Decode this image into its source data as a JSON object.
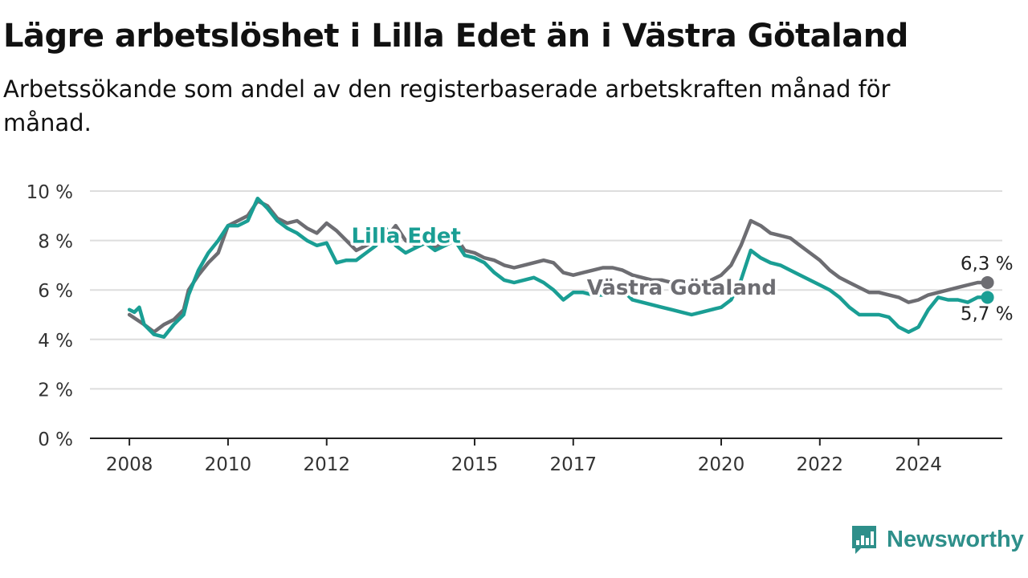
{
  "title": "Lägre arbetslöshet i Lilla Edet än i Västra Götaland",
  "subtitle": "Arbetssökande som andel av den registerbaserade arbetskraften månad för månad.",
  "brand": {
    "name": "Newsworthy",
    "color": "#2e8f8a",
    "icon": "newsworthy-chart-bubble-icon"
  },
  "chart_data": {
    "type": "line",
    "title": "Lägre arbetslöshet i Lilla Edet än i Västra Götaland",
    "subtitle": "Arbetssökande som andel av den registerbaserade arbetskraften månad för månad.",
    "x_ticks": [
      {
        "value": 2008.0,
        "label": "2008"
      },
      {
        "value": 2010.0,
        "label": "2010"
      },
      {
        "value": 2012.0,
        "label": "2012"
      },
      {
        "value": 2015.0,
        "label": "2015"
      },
      {
        "value": 2017.0,
        "label": "2017"
      },
      {
        "value": 2020.0,
        "label": "2020"
      },
      {
        "value": 2022.0,
        "label": "2022"
      },
      {
        "value": 2024.0,
        "label": "2024"
      }
    ],
    "y_ticks": [
      {
        "value": 0,
        "label": "0 %"
      },
      {
        "value": 2,
        "label": "2 %"
      },
      {
        "value": 4,
        "label": "4 %"
      },
      {
        "value": 6,
        "label": "6 %"
      },
      {
        "value": 8,
        "label": "8 %"
      },
      {
        "value": 10,
        "label": "10 %"
      }
    ],
    "xlim": [
      2007.2,
      2025.7
    ],
    "ylim": [
      0,
      10
    ],
    "grid": true,
    "series": [
      {
        "name": "Västra Götaland",
        "color": "#6d6d72",
        "end_label": "6,3 %",
        "points": [
          [
            2008.0,
            5.0
          ],
          [
            2008.3,
            4.6
          ],
          [
            2008.5,
            4.3
          ],
          [
            2008.7,
            4.6
          ],
          [
            2008.9,
            4.8
          ],
          [
            2009.1,
            5.2
          ],
          [
            2009.2,
            6.0
          ],
          [
            2009.4,
            6.6
          ],
          [
            2009.6,
            7.1
          ],
          [
            2009.8,
            7.5
          ],
          [
            2010.0,
            8.6
          ],
          [
            2010.2,
            8.8
          ],
          [
            2010.4,
            9.0
          ],
          [
            2010.6,
            9.6
          ],
          [
            2010.8,
            9.4
          ],
          [
            2011.0,
            8.9
          ],
          [
            2011.2,
            8.7
          ],
          [
            2011.4,
            8.8
          ],
          [
            2011.6,
            8.5
          ],
          [
            2011.8,
            8.3
          ],
          [
            2012.0,
            8.7
          ],
          [
            2012.2,
            8.4
          ],
          [
            2012.4,
            8.0
          ],
          [
            2012.6,
            7.6
          ],
          [
            2012.8,
            7.8
          ],
          [
            2013.0,
            8.0
          ],
          [
            2013.2,
            8.1
          ],
          [
            2013.4,
            8.6
          ],
          [
            2013.6,
            8.0
          ],
          [
            2013.8,
            7.8
          ],
          [
            2014.0,
            7.9
          ],
          [
            2014.2,
            7.7
          ],
          [
            2014.4,
            8.0
          ],
          [
            2014.6,
            8.2
          ],
          [
            2014.8,
            7.6
          ],
          [
            2015.0,
            7.5
          ],
          [
            2015.2,
            7.3
          ],
          [
            2015.4,
            7.2
          ],
          [
            2015.6,
            7.0
          ],
          [
            2015.8,
            6.9
          ],
          [
            2016.0,
            7.0
          ],
          [
            2016.2,
            7.1
          ],
          [
            2016.4,
            7.2
          ],
          [
            2016.6,
            7.1
          ],
          [
            2016.8,
            6.7
          ],
          [
            2017.0,
            6.6
          ],
          [
            2017.2,
            6.7
          ],
          [
            2017.4,
            6.8
          ],
          [
            2017.6,
            6.9
          ],
          [
            2017.8,
            6.9
          ],
          [
            2018.0,
            6.8
          ],
          [
            2018.2,
            6.6
          ],
          [
            2018.4,
            6.5
          ],
          [
            2018.6,
            6.4
          ],
          [
            2018.8,
            6.4
          ],
          [
            2019.0,
            6.3
          ],
          [
            2019.2,
            6.3
          ],
          [
            2019.4,
            6.2
          ],
          [
            2019.6,
            6.3
          ],
          [
            2019.8,
            6.4
          ],
          [
            2020.0,
            6.6
          ],
          [
            2020.2,
            7.0
          ],
          [
            2020.4,
            7.8
          ],
          [
            2020.6,
            8.8
          ],
          [
            2020.8,
            8.6
          ],
          [
            2021.0,
            8.3
          ],
          [
            2021.2,
            8.2
          ],
          [
            2021.4,
            8.1
          ],
          [
            2021.6,
            7.8
          ],
          [
            2021.8,
            7.5
          ],
          [
            2022.0,
            7.2
          ],
          [
            2022.2,
            6.8
          ],
          [
            2022.4,
            6.5
          ],
          [
            2022.6,
            6.3
          ],
          [
            2022.8,
            6.1
          ],
          [
            2023.0,
            5.9
          ],
          [
            2023.2,
            5.9
          ],
          [
            2023.4,
            5.8
          ],
          [
            2023.6,
            5.7
          ],
          [
            2023.8,
            5.5
          ],
          [
            2024.0,
            5.6
          ],
          [
            2024.2,
            5.8
          ],
          [
            2024.4,
            5.9
          ],
          [
            2024.6,
            6.0
          ],
          [
            2024.8,
            6.1
          ],
          [
            2025.0,
            6.2
          ],
          [
            2025.2,
            6.3
          ],
          [
            2025.4,
            6.3
          ]
        ]
      },
      {
        "name": "Lilla Edet",
        "color": "#1a9e94",
        "end_label": "5,7 %",
        "points": [
          [
            2008.0,
            5.2
          ],
          [
            2008.1,
            5.1
          ],
          [
            2008.2,
            5.3
          ],
          [
            2008.3,
            4.6
          ],
          [
            2008.5,
            4.2
          ],
          [
            2008.7,
            4.1
          ],
          [
            2008.9,
            4.6
          ],
          [
            2009.1,
            5.0
          ],
          [
            2009.2,
            5.8
          ],
          [
            2009.4,
            6.8
          ],
          [
            2009.6,
            7.5
          ],
          [
            2009.8,
            8.0
          ],
          [
            2010.0,
            8.6
          ],
          [
            2010.2,
            8.6
          ],
          [
            2010.4,
            8.8
          ],
          [
            2010.6,
            9.7
          ],
          [
            2010.8,
            9.3
          ],
          [
            2011.0,
            8.8
          ],
          [
            2011.2,
            8.5
          ],
          [
            2011.4,
            8.3
          ],
          [
            2011.6,
            8.0
          ],
          [
            2011.8,
            7.8
          ],
          [
            2012.0,
            7.9
          ],
          [
            2012.2,
            7.1
          ],
          [
            2012.4,
            7.2
          ],
          [
            2012.6,
            7.2
          ],
          [
            2012.8,
            7.5
          ],
          [
            2013.0,
            7.8
          ],
          [
            2013.2,
            8.5
          ],
          [
            2013.4,
            7.8
          ],
          [
            2013.6,
            7.5
          ],
          [
            2013.8,
            7.7
          ],
          [
            2014.0,
            7.9
          ],
          [
            2014.2,
            7.6
          ],
          [
            2014.4,
            7.8
          ],
          [
            2014.6,
            8.0
          ],
          [
            2014.8,
            7.4
          ],
          [
            2015.0,
            7.3
          ],
          [
            2015.2,
            7.1
          ],
          [
            2015.4,
            6.7
          ],
          [
            2015.6,
            6.4
          ],
          [
            2015.8,
            6.3
          ],
          [
            2016.0,
            6.4
          ],
          [
            2016.2,
            6.5
          ],
          [
            2016.4,
            6.3
          ],
          [
            2016.6,
            6.0
          ],
          [
            2016.8,
            5.6
          ],
          [
            2017.0,
            5.9
          ],
          [
            2017.2,
            5.9
          ],
          [
            2017.4,
            5.8
          ],
          [
            2017.6,
            5.8
          ],
          [
            2017.8,
            6.1
          ],
          [
            2018.0,
            6.0
          ],
          [
            2018.2,
            5.6
          ],
          [
            2018.4,
            5.5
          ],
          [
            2018.6,
            5.4
          ],
          [
            2018.8,
            5.3
          ],
          [
            2019.0,
            5.2
          ],
          [
            2019.2,
            5.1
          ],
          [
            2019.4,
            5.0
          ],
          [
            2019.6,
            5.1
          ],
          [
            2019.8,
            5.2
          ],
          [
            2020.0,
            5.3
          ],
          [
            2020.2,
            5.6
          ],
          [
            2020.4,
            6.4
          ],
          [
            2020.6,
            7.6
          ],
          [
            2020.8,
            7.3
          ],
          [
            2021.0,
            7.1
          ],
          [
            2021.2,
            7.0
          ],
          [
            2021.4,
            6.8
          ],
          [
            2021.6,
            6.6
          ],
          [
            2021.8,
            6.4
          ],
          [
            2022.0,
            6.2
          ],
          [
            2022.2,
            6.0
          ],
          [
            2022.4,
            5.7
          ],
          [
            2022.6,
            5.3
          ],
          [
            2022.8,
            5.0
          ],
          [
            2023.0,
            5.0
          ],
          [
            2023.2,
            5.0
          ],
          [
            2023.4,
            4.9
          ],
          [
            2023.6,
            4.5
          ],
          [
            2023.8,
            4.3
          ],
          [
            2024.0,
            4.5
          ],
          [
            2024.2,
            5.2
          ],
          [
            2024.4,
            5.7
          ],
          [
            2024.6,
            5.6
          ],
          [
            2024.8,
            5.6
          ],
          [
            2025.0,
            5.5
          ],
          [
            2025.2,
            5.7
          ],
          [
            2025.4,
            5.7
          ]
        ]
      }
    ]
  }
}
